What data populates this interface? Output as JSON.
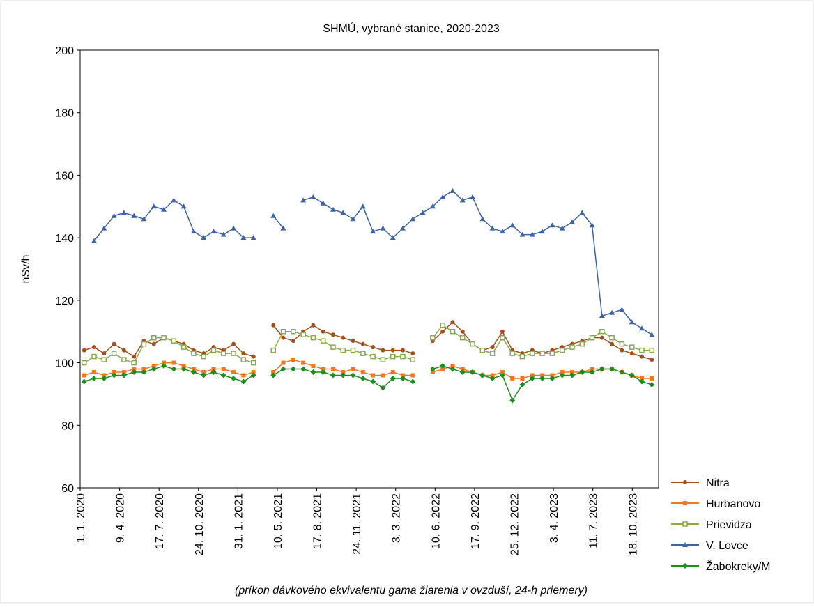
{
  "chart_data": {
    "type": "line",
    "title": "SHMÚ, vybrané stanice, 2020-2023",
    "y_label": "nSv/h",
    "x_label": "(príkon dávkového ekvivalentu gama žiarenia v ovzduší, 24-h priemery)",
    "x": [
      10,
      35,
      60,
      85,
      110,
      135,
      160,
      185,
      210,
      235,
      260,
      285,
      310,
      335,
      360,
      385,
      410,
      435,
      460,
      485,
      510,
      535,
      560,
      585,
      610,
      635,
      660,
      685,
      710,
      735,
      760,
      785,
      810,
      835,
      860,
      885,
      910,
      935,
      960,
      985,
      1010,
      1035,
      1060,
      1085,
      1110,
      1135,
      1160,
      1185,
      1210,
      1235,
      1260,
      1285,
      1310,
      1335,
      1360,
      1385,
      1410,
      1435
    ],
    "xlim": [
      0,
      1452
    ],
    "xticks": [
      {
        "value": 0,
        "label": "1. 1. 2020"
      },
      {
        "value": 99,
        "label": "9. 4. 2020"
      },
      {
        "value": 198,
        "label": "17. 7. 2020"
      },
      {
        "value": 297,
        "label": "24. 10. 2020"
      },
      {
        "value": 396,
        "label": "31. 1. 2021"
      },
      {
        "value": 495,
        "label": "10. 5. 2021"
      },
      {
        "value": 594,
        "label": "17. 8. 2021"
      },
      {
        "value": 693,
        "label": "24. 11. 2021"
      },
      {
        "value": 792,
        "label": "3. 3. 2022"
      },
      {
        "value": 891,
        "label": "10. 6. 2022"
      },
      {
        "value": 990,
        "label": "17. 9. 2022"
      },
      {
        "value": 1089,
        "label": "25. 12. 2022"
      },
      {
        "value": 1188,
        "label": "3. 4. 2023"
      },
      {
        "value": 1287,
        "label": "11. 7. 2023"
      },
      {
        "value": 1386,
        "label": "18. 10. 2023"
      }
    ],
    "ylim": [
      60,
      200
    ],
    "yticks": [
      60,
      80,
      100,
      120,
      140,
      160,
      180,
      200
    ],
    "grid": false,
    "legend": "right-bottom",
    "series": [
      {
        "name": "Nitra",
        "color": "#a0501e",
        "marker": "circle",
        "values": [
          104,
          105,
          103,
          106,
          104,
          102,
          107,
          106,
          108,
          107,
          106,
          104,
          103,
          105,
          104,
          106,
          103,
          102,
          null,
          112,
          108,
          107,
          110,
          112,
          110,
          109,
          108,
          107,
          106,
          105,
          104,
          104,
          104,
          103,
          null,
          107,
          110,
          113,
          110,
          106,
          104,
          105,
          110,
          104,
          103,
          104,
          103,
          104,
          105,
          106,
          107,
          108,
          108,
          106,
          104,
          103,
          102,
          101
        ]
      },
      {
        "name": "Hurbanovo",
        "color": "#f07820",
        "marker": "square",
        "values": [
          96,
          97,
          96,
          97,
          97,
          98,
          98,
          99,
          100,
          100,
          99,
          98,
          97,
          98,
          98,
          97,
          96,
          97,
          null,
          97,
          100,
          101,
          100,
          99,
          98,
          98,
          97,
          98,
          97,
          96,
          96,
          97,
          96,
          96,
          null,
          97,
          98,
          99,
          98,
          97,
          96,
          96,
          97,
          95,
          95,
          96,
          96,
          96,
          97,
          97,
          97,
          98,
          98,
          98,
          97,
          96,
          95,
          95
        ]
      },
      {
        "name": "Prievidza",
        "color": "#8aa850",
        "marker": "hollow-square",
        "values": [
          100,
          102,
          101,
          103,
          101,
          100,
          106,
          108,
          108,
          107,
          105,
          103,
          102,
          104,
          103,
          103,
          101,
          100,
          null,
          104,
          110,
          110,
          109,
          108,
          107,
          105,
          104,
          104,
          103,
          102,
          101,
          102,
          102,
          101,
          null,
          108,
          112,
          110,
          108,
          106,
          104,
          103,
          108,
          103,
          102,
          103,
          103,
          103,
          104,
          105,
          106,
          108,
          110,
          108,
          106,
          105,
          104,
          104
        ]
      },
      {
        "name": "V. Lovce",
        "color": "#3c64a0",
        "marker": "triangle",
        "values": [
          null,
          139,
          143,
          147,
          148,
          147,
          146,
          150,
          149,
          152,
          150,
          142,
          140,
          142,
          141,
          143,
          140,
          140,
          null,
          147,
          143,
          null,
          152,
          153,
          151,
          149,
          148,
          146,
          150,
          142,
          143,
          140,
          143,
          146,
          148,
          150,
          153,
          155,
          152,
          153,
          146,
          143,
          142,
          144,
          141,
          141,
          142,
          144,
          143,
          145,
          148,
          144,
          115,
          116,
          117,
          113,
          111,
          109
        ]
      },
      {
        "name": "Žabokreky/M",
        "color": "#1e8c1e",
        "marker": "diamond",
        "values": [
          94,
          95,
          95,
          96,
          96,
          97,
          97,
          98,
          99,
          98,
          98,
          97,
          96,
          97,
          96,
          95,
          94,
          96,
          null,
          96,
          98,
          98,
          98,
          97,
          97,
          96,
          96,
          96,
          95,
          94,
          92,
          95,
          95,
          94,
          null,
          98,
          99,
          98,
          97,
          97,
          96,
          95,
          96,
          88,
          93,
          95,
          95,
          95,
          96,
          96,
          97,
          97,
          98,
          98,
          97,
          96,
          94,
          93
        ]
      }
    ]
  }
}
